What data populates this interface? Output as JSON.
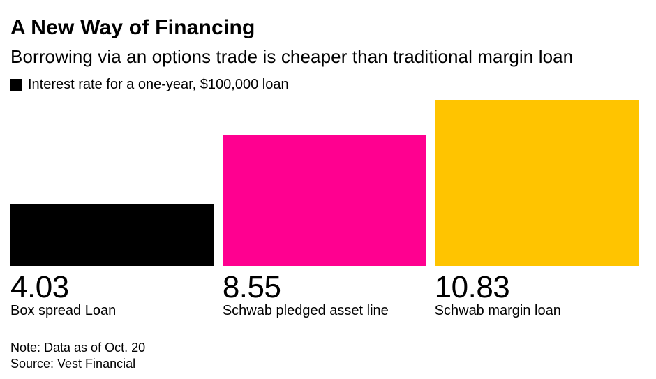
{
  "chart_data": {
    "type": "bar",
    "title": "A New Way of Financing",
    "subtitle": "Borrowing via an options trade is cheaper than traditional margin loan",
    "legend": "Interest rate for a one-year, $100,000 loan",
    "legend_swatch_color": "#000000",
    "legend_position": "top-left",
    "orientation": "vertical",
    "grid": false,
    "axes_shown": false,
    "categories": [
      "Box spread Loan",
      "Schwab pledged asset line",
      "Schwab margin loan"
    ],
    "values": [
      4.03,
      8.55,
      10.83
    ],
    "value_labels": [
      "4.03",
      "8.55",
      "10.83"
    ],
    "colors": [
      "#000000",
      "#FF0090",
      "#FFC400"
    ],
    "ylim": [
      0,
      10.83
    ],
    "unit": "percent interest rate"
  },
  "footer": {
    "note": "Note: Data as of Oct. 20",
    "source": "Source: Vest Financial"
  }
}
